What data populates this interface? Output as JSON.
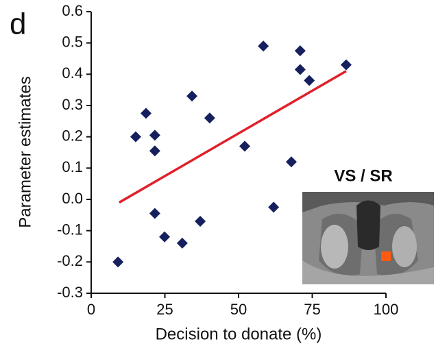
{
  "chart_data": {
    "type": "scatter",
    "panel_label": "d",
    "xlabel": "Decision to donate (%)",
    "ylabel": "Parameter estimates",
    "inset_label": "VS / SR",
    "marker": "diamond",
    "color": "#16205e",
    "x": [
      9.1,
      15.1,
      18.6,
      21.6,
      21.6,
      21.6,
      24.9,
      30.9,
      34.2,
      37,
      40.2,
      52.1,
      58.4,
      61.9,
      67.9,
      70.9,
      70.9,
      74,
      86.5
    ],
    "y": [
      -0.2,
      0.2,
      0.275,
      0.205,
      0.155,
      -0.045,
      -0.12,
      -0.14,
      0.33,
      -0.07,
      0.26,
      0.17,
      0.49,
      -0.025,
      0.12,
      0.475,
      0.415,
      0.38,
      0.43
    ],
    "fit_line": {
      "x": [
        9.5,
        86.5
      ],
      "y": [
        -0.01,
        0.41
      ],
      "color": "#e0202a"
    },
    "xlim": [
      0,
      100
    ],
    "ylim": [
      -0.3,
      0.6
    ],
    "xticks": [
      0,
      25,
      50,
      75,
      100
    ],
    "yticks": [
      -0.3,
      -0.2,
      -0.1,
      {
        "value": 0,
        "label": "0.0"
      },
      0.1,
      0.2,
      0.3,
      0.4,
      0.5,
      0.6
    ]
  }
}
